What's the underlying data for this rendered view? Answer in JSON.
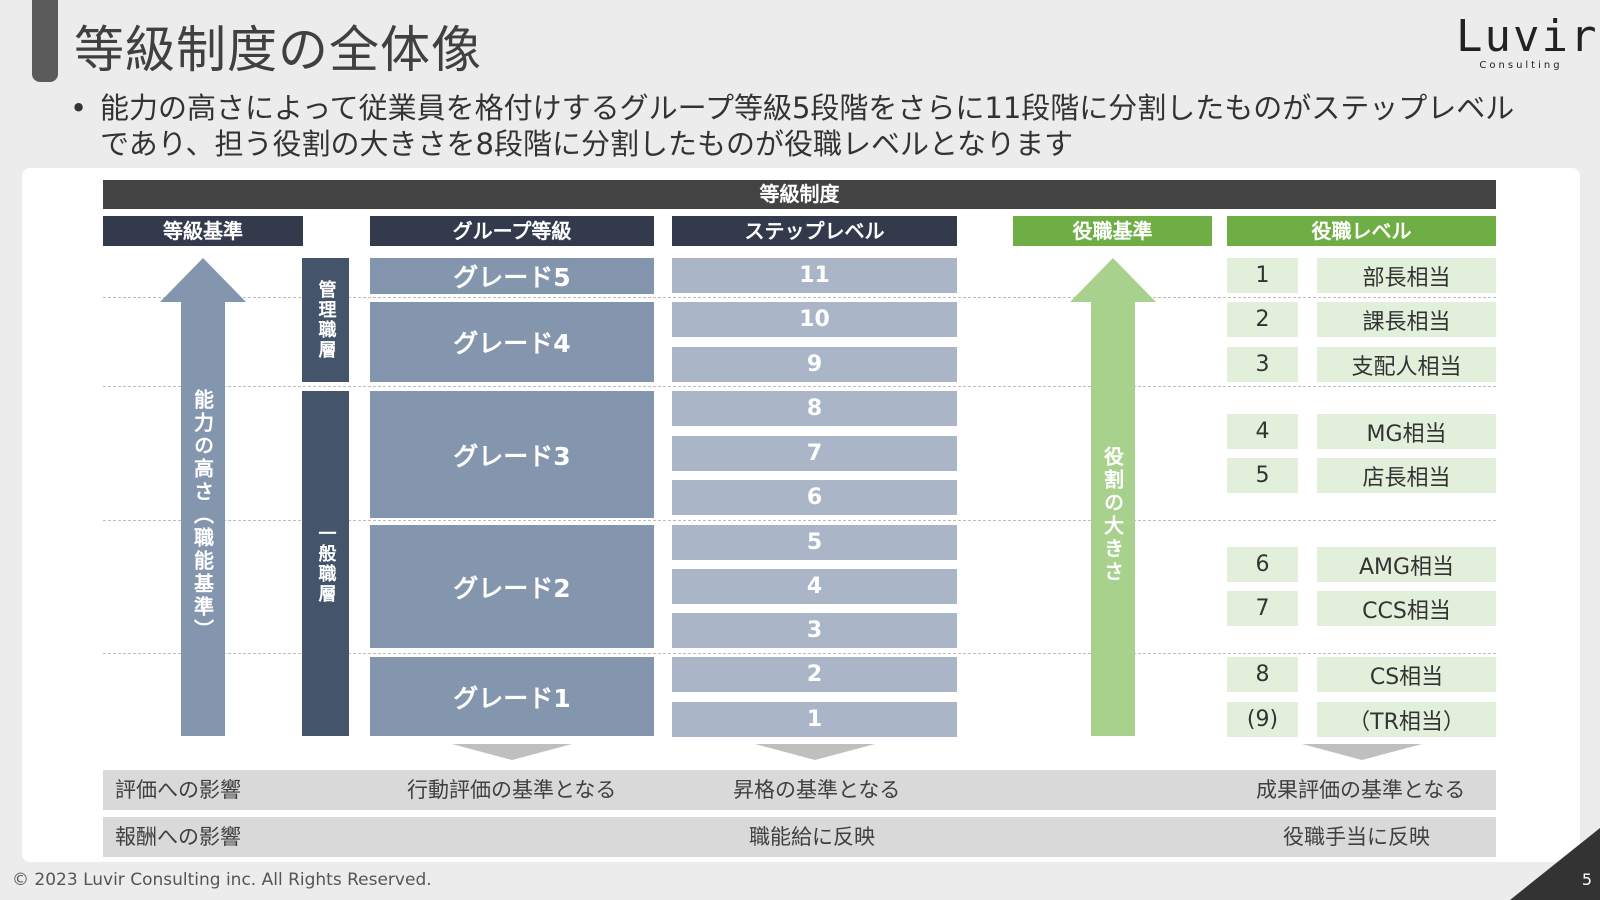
{
  "slide": {
    "title": "等級制度の全体像",
    "lead_bullet": "•",
    "lead": "能力の高さによって従業員を格付けするグループ等級5段階をさらに11段階に分割したものがステップレベルであり、担う役割の大きさを8段階に分割したものが役職レベルとなります",
    "logo": {
      "main": "Luvir",
      "sub": "Consulting"
    },
    "footer": "© 2023 Luvir Consulting inc. All Rights Reserved.",
    "page_number": "5"
  },
  "table": {
    "main_header": "等級制度",
    "headers": {
      "grade_basis": "等級基準",
      "group_grade": "グループ等級",
      "step_level": "ステップレベル",
      "role_basis": "役職基準",
      "role_level": "役職レベル"
    },
    "ability_arrow_label": "能力の高さ（職能基準）",
    "role_arrow_label": "役割の大きさ",
    "tiers": {
      "manager": "管理職層",
      "general": "一般職層"
    },
    "grades": [
      "グレード5",
      "グレード4",
      "グレード3",
      "グレード2",
      "グレード1"
    ],
    "steps": [
      "11",
      "10",
      "9",
      "8",
      "7",
      "6",
      "5",
      "4",
      "3",
      "2",
      "1"
    ],
    "roles": [
      {
        "num": "1",
        "name": "部長相当"
      },
      {
        "num": "2",
        "name": "課長相当"
      },
      {
        "num": "3",
        "name": "支配人相当"
      },
      {
        "num": "4",
        "name": "MG相当"
      },
      {
        "num": "5",
        "name": "店長相当"
      },
      {
        "num": "6",
        "name": "AMG相当"
      },
      {
        "num": "7",
        "name": "CCS相当"
      },
      {
        "num": "8",
        "name": "CS相当"
      },
      {
        "num": "(9)",
        "name": "（TR相当）"
      }
    ]
  },
  "impacts": {
    "evaluation": {
      "label": "評価への影響",
      "grade": "行動評価の基準となる",
      "step": "昇格の基準となる",
      "role": "成果評価の基準となる"
    },
    "compensation": {
      "label": "報酬への影響",
      "step": "職能給に反映",
      "role": "役職手当に反映"
    }
  },
  "colors": {
    "dark_header": "#323a4b",
    "green_header": "#6fae45",
    "grade_fill": "#8496ae",
    "step_fill": "#aab5c8",
    "role_fill": "#e2efda",
    "tier_fill": "#44546a"
  }
}
